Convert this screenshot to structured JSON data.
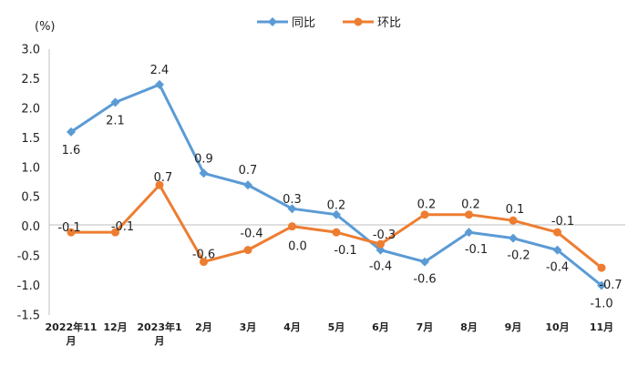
{
  "chart_data": {
    "type": "line",
    "ylabel": "(%)",
    "ylim": [
      -1.5,
      3.0
    ],
    "yticks": [
      "3.0",
      "2.5",
      "2.0",
      "1.5",
      "1.0",
      "0.5",
      "0.0",
      "-0.5",
      "-1.0",
      "-1.5"
    ],
    "categories": [
      [
        "2022年11",
        "月"
      ],
      [
        "12月"
      ],
      [
        "2023年1",
        "月"
      ],
      [
        "2月"
      ],
      [
        "3月"
      ],
      [
        "4月"
      ],
      [
        "5月"
      ],
      [
        "6月"
      ],
      [
        "7月"
      ],
      [
        "8月"
      ],
      [
        "9月"
      ],
      [
        "10月"
      ],
      [
        "11月"
      ]
    ],
    "legend_position": "top-center",
    "series": [
      {
        "name": "同比",
        "color": "#5b9bd5",
        "marker": "diamond",
        "values": [
          1.6,
          2.1,
          2.4,
          0.9,
          0.7,
          0.3,
          0.2,
          -0.4,
          -0.6,
          -0.1,
          -0.2,
          -0.4,
          -1.0
        ],
        "labels": [
          "1.6",
          "2.1",
          "2.4",
          "0.9",
          "0.7",
          "0.3",
          "0.2",
          "-0.4",
          "-0.6",
          "-0.1",
          "-0.2",
          "-0.4",
          "-1.0"
        ]
      },
      {
        "name": "环比",
        "color": "#ed7d31",
        "marker": "circle",
        "values": [
          -0.1,
          -0.1,
          0.7,
          -0.6,
          -0.4,
          0.0,
          -0.1,
          -0.3,
          0.2,
          0.2,
          0.1,
          -0.1,
          -0.7
        ],
        "labels": [
          "-0.1",
          "-0.1",
          "0.7",
          "-0.6",
          "-0.4",
          "0.0",
          "-0.1",
          "-0.3",
          "0.2",
          "0.2",
          "0.1",
          "-0.1",
          "-0.7"
        ]
      }
    ]
  }
}
